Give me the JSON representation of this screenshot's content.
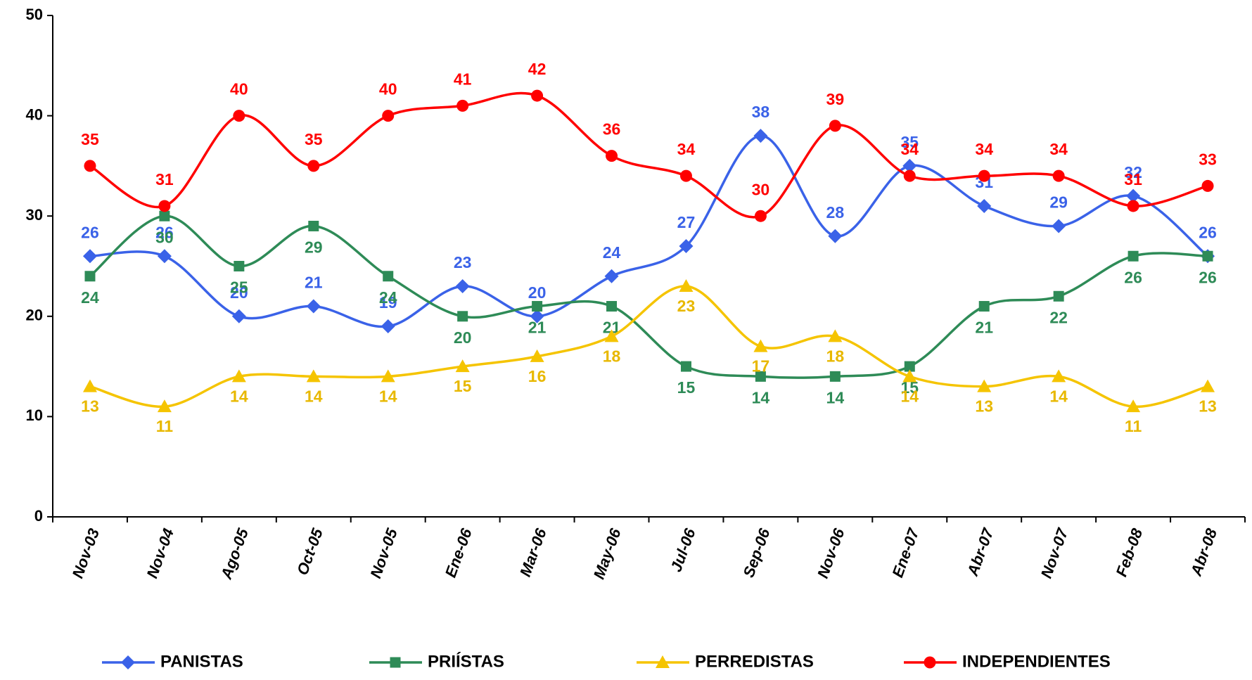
{
  "chart_data": {
    "type": "line",
    "categories": [
      "Nov-03",
      "Nov-04",
      "Ago-05",
      "Oct-05",
      "Nov-05",
      "Ene-06",
      "Mar-06",
      "May-06",
      "Jul-06",
      "Sep-06",
      "Nov-06",
      "Ene-07",
      "Abr-07",
      "Nov-07",
      "Feb-08",
      "Abr-08"
    ],
    "series": [
      {
        "name": "PANISTAS",
        "color": "#3a62e8",
        "marker": "diamond",
        "values": [
          26,
          26,
          20,
          21,
          19,
          23,
          20,
          24,
          27,
          38,
          28,
          35,
          31,
          29,
          32,
          26
        ]
      },
      {
        "name": "PRIÍSTAS",
        "color": "#2e8b57",
        "marker": "square",
        "values": [
          24,
          30,
          25,
          29,
          24,
          20,
          21,
          21,
          15,
          14,
          14,
          15,
          21,
          22,
          26,
          26
        ]
      },
      {
        "name": "PERREDISTAS",
        "color": "#f5c400",
        "marker": "triangle",
        "values": [
          13,
          11,
          14,
          14,
          14,
          15,
          16,
          18,
          23,
          17,
          18,
          14,
          13,
          14,
          11,
          13
        ]
      },
      {
        "name": "INDEPENDIENTES",
        "color": "#ff0000",
        "marker": "circle",
        "values": [
          35,
          31,
          40,
          35,
          40,
          41,
          42,
          36,
          34,
          30,
          39,
          34,
          34,
          34,
          31,
          33
        ]
      }
    ],
    "ylim": [
      0,
      50
    ],
    "yticks": [
      0,
      10,
      20,
      30,
      40,
      50
    ],
    "smooth": true,
    "legend": "bottom"
  }
}
